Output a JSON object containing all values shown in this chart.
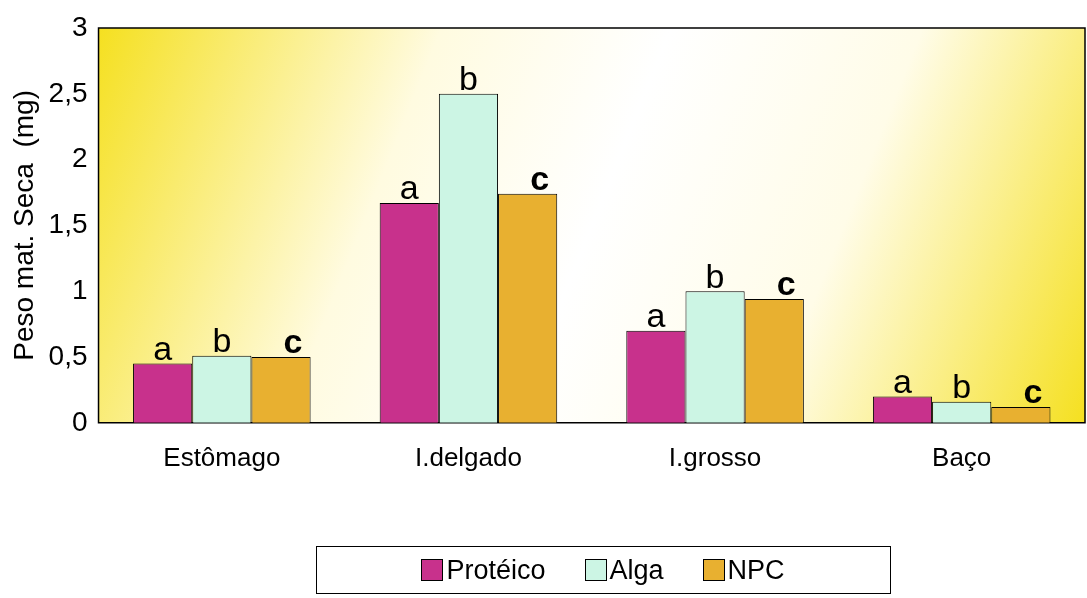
{
  "chart_data": {
    "type": "bar",
    "ylabel": "Peso mat. Seca  (mg)",
    "categories": [
      "Estômago",
      "I.delgado",
      "I.grosso",
      "Baço"
    ],
    "series": [
      {
        "name": "Protéico",
        "color": "#c8318c",
        "values": [
          0.45,
          1.67,
          0.7,
          0.2
        ],
        "value_labels": [
          "a",
          "a",
          "a",
          "a"
        ]
      },
      {
        "name": "Alga",
        "color": "#ccf5e4",
        "values": [
          0.51,
          2.5,
          1.0,
          0.16
        ],
        "value_labels": [
          "b",
          "b",
          "b",
          "b"
        ]
      },
      {
        "name": "NPC",
        "color": "#e8b030",
        "values": [
          0.5,
          1.74,
          0.94,
          0.12
        ],
        "value_labels": [
          "c",
          "c",
          "c",
          "c"
        ]
      }
    ],
    "ylim": [
      0,
      3
    ],
    "yticks": [
      0,
      {
        "value": 0.5,
        "label": "0,5"
      },
      1,
      {
        "value": 1.5,
        "label": "1,5"
      },
      2,
      {
        "value": 2.5,
        "label": "2,5"
      },
      3
    ],
    "grid": false,
    "legend": "bottom"
  }
}
